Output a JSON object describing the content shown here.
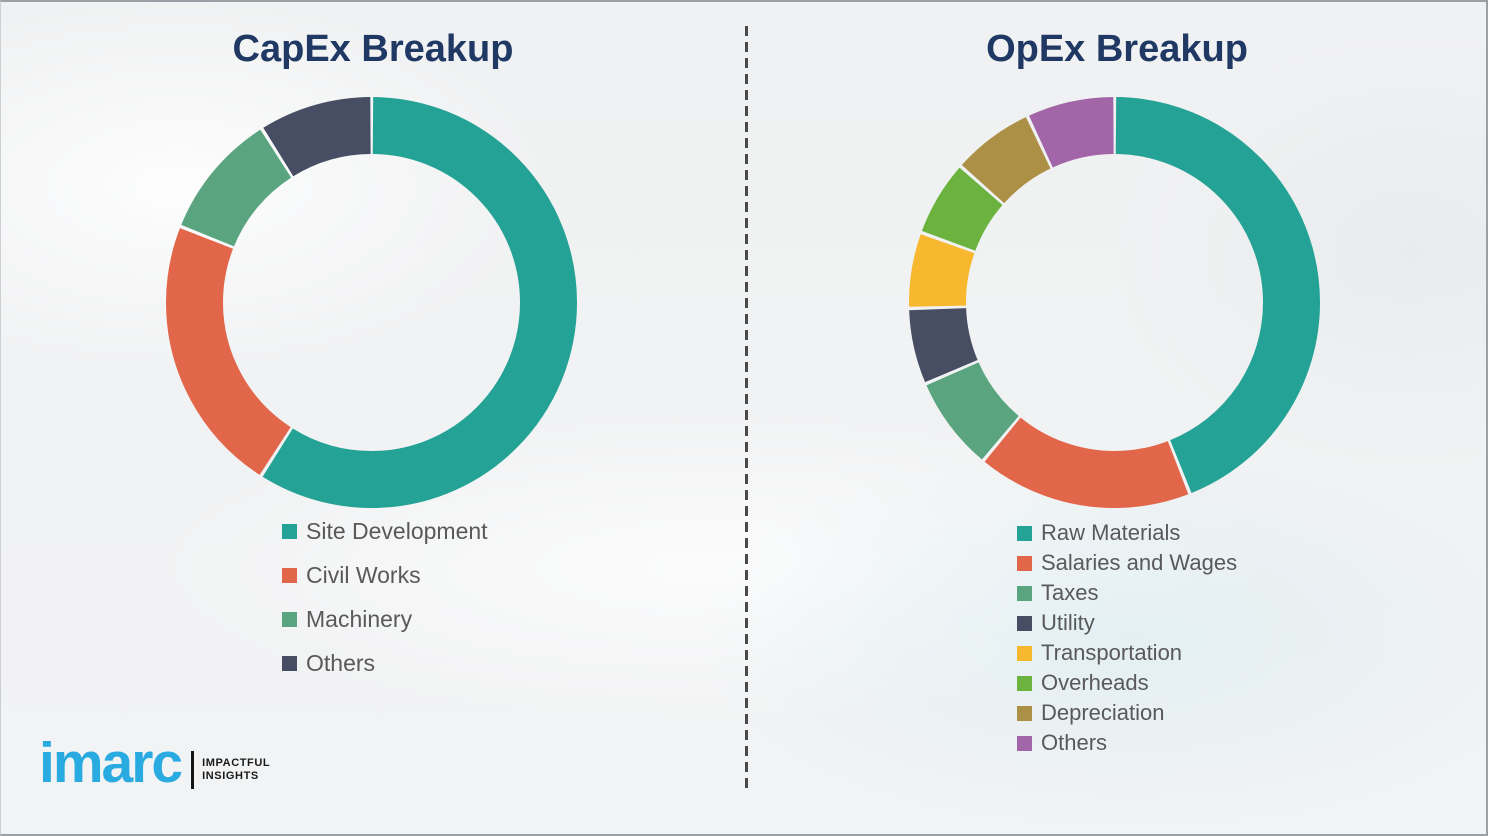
{
  "chart_data": [
    {
      "type": "pie",
      "subtype": "donut",
      "title": "CapEx Breakup",
      "categories": [
        "Site Development",
        "Civil Works",
        "Machinery",
        "Others"
      ],
      "values": [
        59,
        22,
        10,
        9
      ],
      "colors": [
        "#24A296",
        "#E2664A",
        "#5AA57F",
        "#474D63"
      ],
      "legend_position": "bottom-left",
      "start_angle_deg": 0,
      "direction": "clockwise"
    },
    {
      "type": "pie",
      "subtype": "donut",
      "title": "OpEx Breakup",
      "categories": [
        "Raw Materials",
        "Salaries and Wages",
        "Taxes",
        "Utility",
        "Transportation",
        "Overheads",
        "Depreciation",
        "Others"
      ],
      "values": [
        44,
        17,
        7.5,
        6,
        6,
        6,
        6.5,
        7
      ],
      "colors": [
        "#24A296",
        "#E2664A",
        "#5AA57F",
        "#474D63",
        "#F7B82F",
        "#6BB23F",
        "#AC9045",
        "#A265A8"
      ],
      "legend_position": "bottom-left",
      "start_angle_deg": 0,
      "direction": "clockwise"
    }
  ],
  "titles": {
    "capex": "CapEx Breakup",
    "opex": "OpEx Breakup"
  },
  "logo": {
    "brand": "imarc",
    "tagline": [
      "IMPACTFUL",
      "INSIGHTS"
    ],
    "brand_color": "#29ABE2"
  },
  "style_colors": {
    "title_navy": "#1F3864",
    "legend_text": "#595959",
    "divider_gray": "#4a4a4a"
  }
}
